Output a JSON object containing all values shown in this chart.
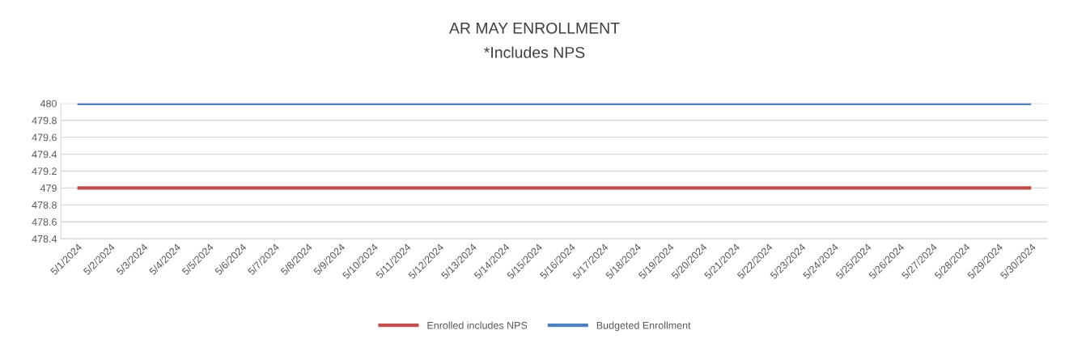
{
  "chart_data": {
    "type": "line",
    "title": "AR MAY ENROLLMENT",
    "subtitle": "*Includes NPS",
    "categories": [
      "5/1/2024",
      "5/2/2024",
      "5/3/2024",
      "5/4/2024",
      "5/5/2024",
      "5/6/2024",
      "5/7/2024",
      "5/8/2024",
      "5/9/2024",
      "5/10/2024",
      "5/11/2024",
      "5/12/2024",
      "5/13/2024",
      "5/14/2024",
      "5/15/2024",
      "5/16/2024",
      "5/17/2024",
      "5/18/2024",
      "5/19/2024",
      "5/20/2024",
      "5/21/2024",
      "5/22/2024",
      "5/23/2024",
      "5/24/2024",
      "5/25/2024",
      "5/26/2024",
      "5/27/2024",
      "5/28/2024",
      "5/29/2024",
      "5/30/2024"
    ],
    "series": [
      {
        "name": "Enrolled includes NPS",
        "color": "#c0504d",
        "values": [
          479,
          479,
          479,
          479,
          479,
          479,
          479,
          479,
          479,
          479,
          479,
          479,
          479,
          479,
          479,
          479,
          479,
          479,
          479,
          479,
          479,
          479,
          479,
          479,
          479,
          479,
          479,
          479,
          479,
          479
        ]
      },
      {
        "name": "Budgeted Enrollment",
        "color": "#4f81bd",
        "values": [
          480,
          480,
          480,
          480,
          480,
          480,
          480,
          480,
          480,
          480,
          480,
          480,
          480,
          480,
          480,
          480,
          480,
          480,
          480,
          480,
          480,
          480,
          480,
          480,
          480,
          480,
          480,
          480,
          480,
          480
        ]
      }
    ],
    "ylim": [
      478.4,
      480
    ],
    "yticks": [
      478.4,
      478.6,
      478.8,
      479,
      479.2,
      479.4,
      479.6,
      479.8,
      480
    ],
    "grid": "y",
    "legend": "bottom",
    "marker": "none",
    "line_style": "solid"
  }
}
